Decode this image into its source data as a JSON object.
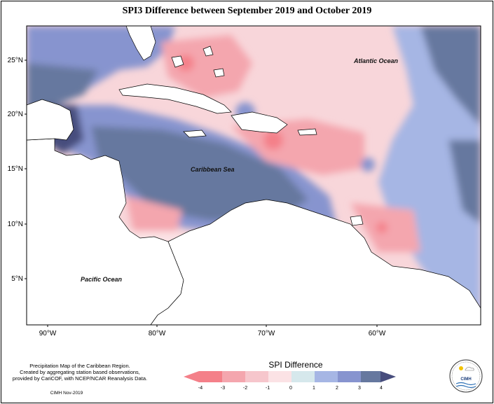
{
  "title": "SPI3 Difference between September 2019 and October 2019",
  "map": {
    "region": "Caribbean",
    "lat_ticks": [
      "25°N",
      "20°N",
      "15°N",
      "10°N",
      "5°N"
    ],
    "lon_ticks": [
      "90°W",
      "80°W",
      "70°W",
      "60°W"
    ],
    "labels": {
      "atlantic": "Atlantic Ocean",
      "caribbean": "Caribbean Sea",
      "pacific": "Pacific Ocean"
    }
  },
  "legend": {
    "title": "SPI Difference",
    "ticks": [
      "-4",
      "-3",
      "-2",
      "-1",
      "0",
      "1",
      "2",
      "3",
      "4"
    ],
    "colors": [
      "#f48089",
      "#f4a6ae",
      "#f6c6cc",
      "#fbe2e5",
      "#d6e8ec",
      "#a6b6e4",
      "#8794cf",
      "#66789f",
      "#474d7d"
    ]
  },
  "credits": {
    "line1": "Precipitation Map of the Caribbean Region.",
    "line2": "Created by aggregating station based observations,",
    "line3": "provided by CariCOF, with NCEP/NCAR Reanalysis Data.",
    "stamp": "CIMH Nov-2019"
  },
  "logo": {
    "text": "CIMH"
  }
}
